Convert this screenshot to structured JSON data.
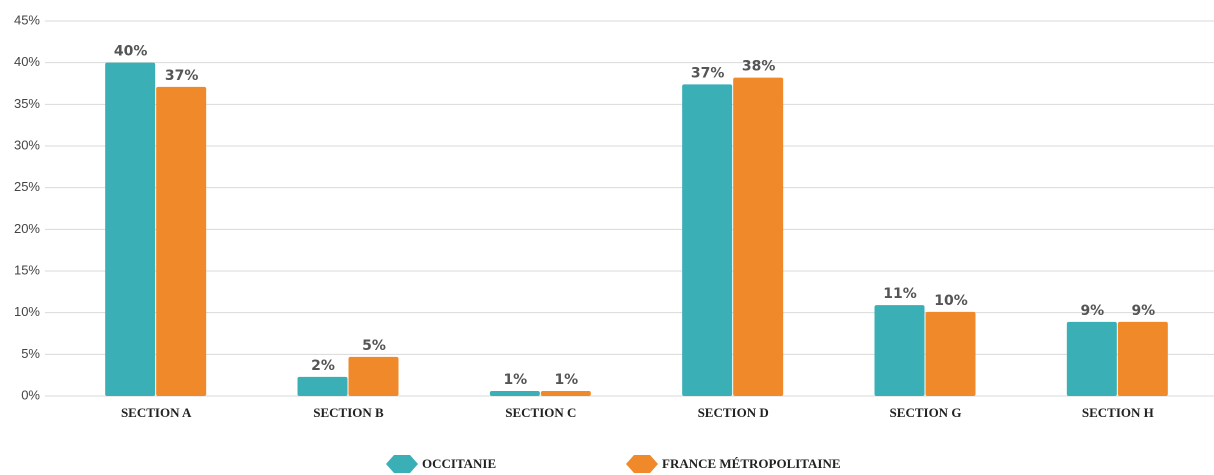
{
  "chart_data": {
    "type": "bar",
    "categories": [
      "SECTION A",
      "SECTION B",
      "SECTION C",
      "SECTION D",
      "SECTION G",
      "SECTION H"
    ],
    "series": [
      {
        "name": "OCCITANIE",
        "color": "#3aafb6",
        "values": [
          40,
          2.3,
          0.6,
          37.4,
          10.9,
          8.9
        ],
        "value_labels": [
          "40%",
          "2%",
          "1%",
          "37%",
          "11%",
          "9%"
        ]
      },
      {
        "name": "FRANCE MÉTROPOLITAINE",
        "color": "#f0892a",
        "values": [
          37.1,
          4.7,
          0.6,
          38.2,
          10.1,
          8.9
        ],
        "value_labels": [
          "37%",
          "5%",
          "1%",
          "38%",
          "10%",
          "9%"
        ]
      }
    ],
    "ylim": [
      0,
      45
    ],
    "yticks": [
      {
        "value": 0,
        "label": "0%"
      },
      {
        "value": 5,
        "label": "5%"
      },
      {
        "value": 10,
        "label": "10%"
      },
      {
        "value": 15,
        "label": "15%"
      },
      {
        "value": 20,
        "label": "20%"
      },
      {
        "value": 25,
        "label": "25%"
      },
      {
        "value": 30,
        "label": "30%"
      },
      {
        "value": 35,
        "label": "35%"
      },
      {
        "value": 40,
        "label": "40%"
      },
      {
        "value": 45,
        "label": "45%"
      }
    ],
    "grid": true,
    "legend": "bottom"
  }
}
